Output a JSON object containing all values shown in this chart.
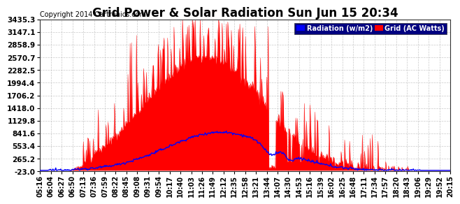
{
  "title": "Grid Power & Solar Radiation Sun Jun 15 20:34",
  "copyright": "Copyright 2014 Cartronics.com",
  "legend_labels": [
    "Radiation (w/m2)",
    "Grid (AC Watts)"
  ],
  "legend_colors": [
    "#0000ff",
    "#ff0000"
  ],
  "background_color": "#ffffff",
  "plot_background": "#ffffff",
  "grid_color": "#bbbbbb",
  "yticks": [
    -23.0,
    265.2,
    553.4,
    841.6,
    1129.8,
    1418.0,
    1706.2,
    1994.4,
    2282.5,
    2570.7,
    2858.9,
    3147.1,
    3435.3
  ],
  "ymin": -23.0,
  "ymax": 3435.3,
  "x_labels": [
    "05:16",
    "06:04",
    "06:27",
    "06:50",
    "07:13",
    "07:36",
    "07:59",
    "08:22",
    "08:45",
    "09:08",
    "09:31",
    "09:54",
    "10:17",
    "10:40",
    "11:03",
    "11:26",
    "11:49",
    "12:12",
    "12:35",
    "12:58",
    "13:21",
    "13:44",
    "14:07",
    "14:30",
    "14:53",
    "15:16",
    "15:39",
    "16:02",
    "16:25",
    "16:48",
    "17:11",
    "17:34",
    "17:57",
    "18:20",
    "18:43",
    "19:06",
    "19:29",
    "19:52",
    "20:15"
  ],
  "radiation_color": "#0000ff",
  "grid_power_color": "#ff0000",
  "title_fontsize": 12,
  "copyright_fontsize": 7,
  "tick_fontsize": 7,
  "ytick_fontsize": 7.5
}
